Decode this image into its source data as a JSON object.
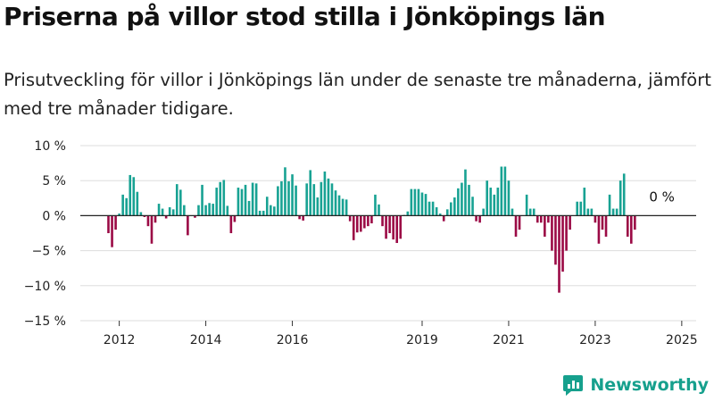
{
  "header": {
    "title": "Priserna på villor stod stilla i Jönköpings län",
    "subtitle": "Prisutveckling för villor i Jönköpings län under de senaste tre månaderna, jämfört med tre månader tidigare."
  },
  "brand": {
    "name": "Newsworthy",
    "icon": "newsworthy-logo-icon",
    "color": "#16a08d"
  },
  "chart_data": {
    "type": "bar",
    "title": "",
    "xlabel": "",
    "ylabel": "",
    "ylim": [
      -15,
      10
    ],
    "y_ticks": [
      10,
      5,
      0,
      -5,
      -10,
      -15
    ],
    "y_tick_labels": [
      "10 %",
      "5 %",
      "0 %",
      "−5 %",
      "−10 %",
      "−15 %"
    ],
    "x_tick_labels": [
      {
        "label": "2012",
        "index": 3
      },
      {
        "label": "2014",
        "index": 27
      },
      {
        "label": "2016",
        "index": 51
      },
      {
        "label": "2019",
        "index": 87
      },
      {
        "label": "2021",
        "index": 111
      },
      {
        "label": "2023",
        "index": 135
      },
      {
        "label": "2025",
        "index": 159
      }
    ],
    "end_label": "0 %",
    "colors": {
      "positive": "#18a293",
      "negative": "#9b0a45",
      "grid": "#dddddd",
      "zero_line": "#222222"
    },
    "grid": true,
    "series": [
      {
        "values": [
          -2.5,
          -4.5,
          -2,
          0.3,
          3,
          2.5,
          5.8,
          5.5,
          3.4,
          0.5,
          -0.2,
          -1.5,
          -4,
          -1,
          1.7,
          1,
          -0.4,
          1.2,
          0.9,
          4.5,
          3.7,
          1.5,
          -2.8,
          0,
          -0.3,
          1.5,
          4.4,
          1.5,
          1.8,
          1.7,
          4,
          4.8,
          5.1,
          1.4,
          -2.5,
          -0.9,
          4,
          3.8,
          4.4,
          2.1,
          4.7,
          4.6,
          0.7,
          0.7,
          2.7,
          1.5,
          1.3,
          4.2,
          4.9,
          6.9,
          4.9,
          5.9,
          4.3,
          -0.5,
          -0.7,
          4.6,
          6.5,
          4.5,
          2.6,
          4.8,
          6.3,
          5.3,
          4.6,
          3.6,
          2.9,
          2.4,
          2.3,
          -0.8,
          -3.5,
          -2.4,
          -2.3,
          -1.8,
          -1.5,
          -1.1,
          3,
          1.6,
          -1.5,
          -3.3,
          -2.5,
          -3.4,
          -3.9,
          -3.3,
          0.1,
          0.6,
          3.8,
          3.8,
          3.8,
          3.3,
          3.1,
          2,
          2,
          1.2,
          0.3,
          -0.8,
          0.9,
          1.9,
          2.6,
          3.9,
          4.7,
          6.6,
          4.4,
          2.7,
          -0.8,
          -1,
          1,
          5,
          4,
          3,
          4,
          7,
          7,
          5,
          1,
          -3,
          -2,
          0,
          3,
          1,
          1,
          -1,
          -1,
          -3,
          -1,
          -5,
          -7,
          -11,
          -8,
          -5,
          -2,
          0,
          2,
          2,
          4,
          1,
          1,
          -1,
          -4,
          -2,
          -3,
          3,
          1,
          1,
          5,
          6,
          -3,
          -4,
          -2
        ]
      }
    ]
  }
}
